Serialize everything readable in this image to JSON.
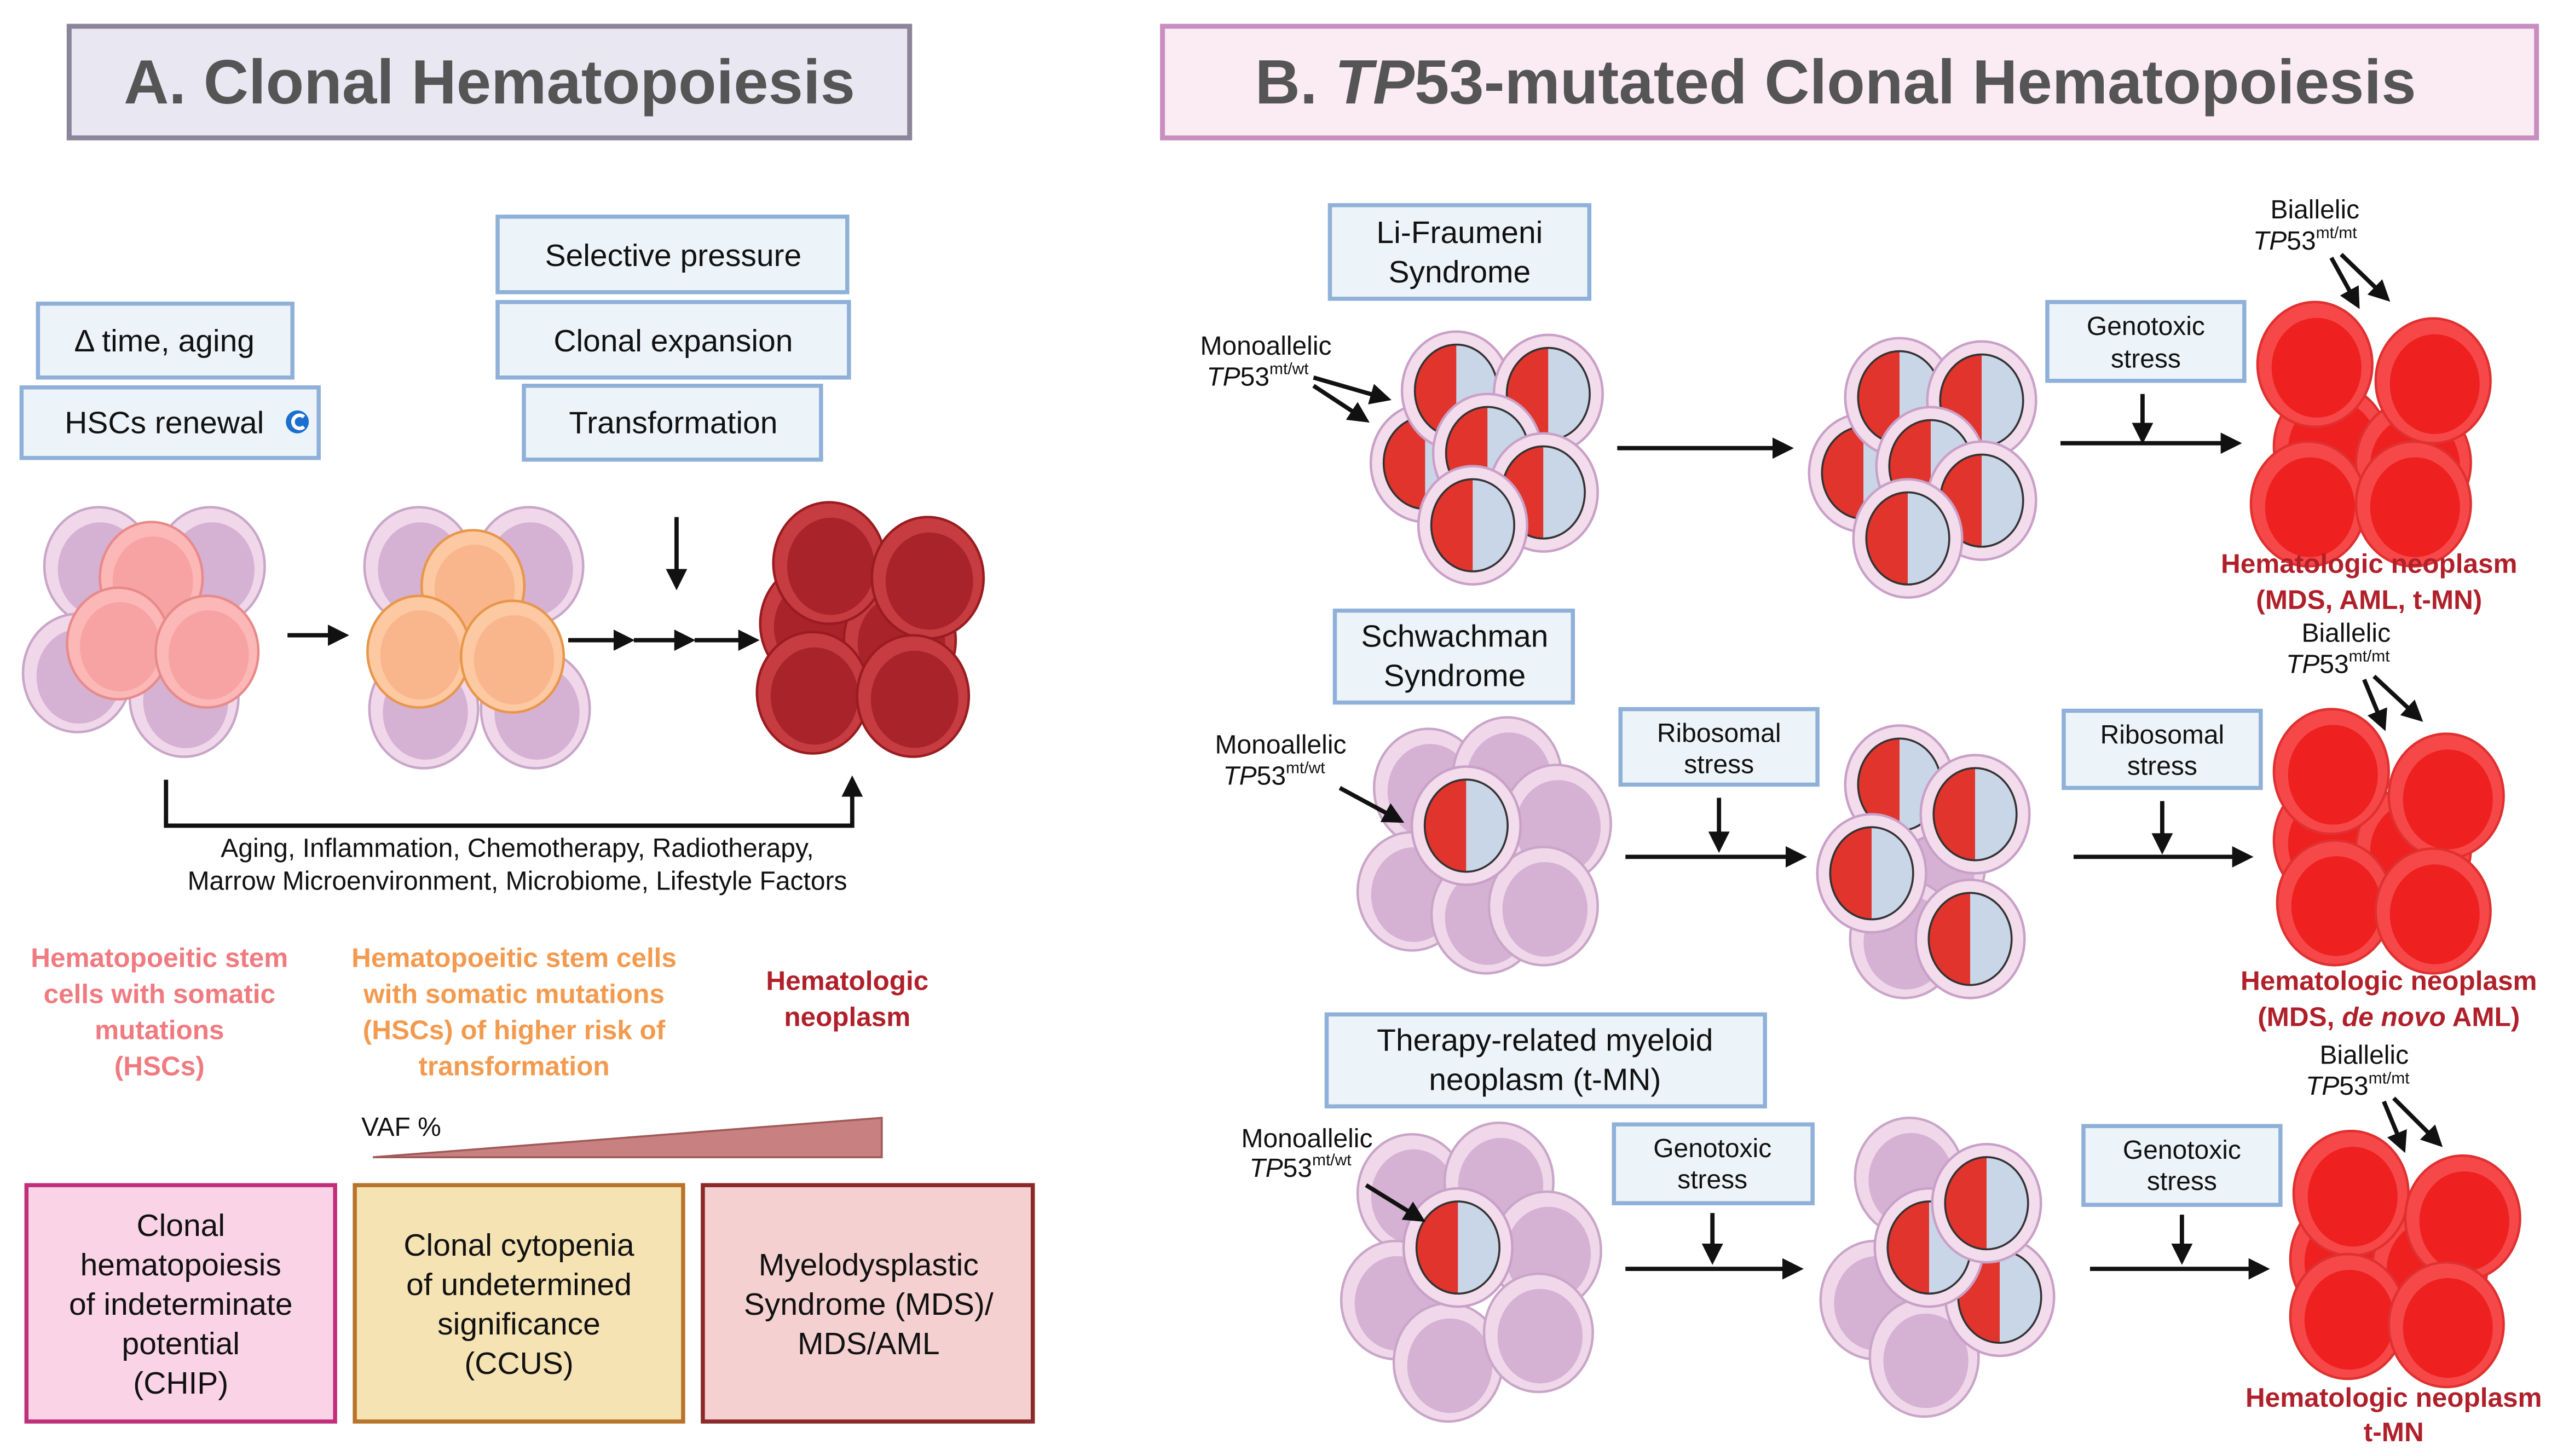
{
  "panel_a": {
    "title": "A. Clonal Hematopoiesis",
    "factors": {
      "time_aging": "Δ time, aging",
      "hsc_renewal": "HSCs renewal",
      "selective_pressure": "Selective pressure",
      "clonal_expansion": "Clonal expansion",
      "transformation": "Transformation"
    },
    "influences": [
      "Aging, Inflammation, Chemotherapy, Radiotherapy,",
      "Marrow Microenvironment, Microbiome, Lifestyle Factors"
    ],
    "stage_labels": {
      "hsc": [
        "Hematopoeitic stem",
        "cells with somatic",
        "mutations",
        "(HSCs)"
      ],
      "high_risk": [
        "Hematopoeitic stem cells",
        "with somatic mutations",
        "(HSCs) of higher risk of",
        "transformation"
      ],
      "neoplasm": [
        "Hematologic",
        "neoplasm"
      ]
    },
    "vaf_label": "VAF %",
    "categories": {
      "chip": [
        "Clonal",
        "hematopoiesis",
        "of indeterminate",
        "potential",
        "(CHIP)"
      ],
      "ccus": [
        "Clonal cytopenia",
        "of undetermined",
        "significance",
        "(CCUS)"
      ],
      "mds": [
        "Myelodysplastic",
        "Syndrome (MDS)/",
        "MDS/AML"
      ]
    },
    "colors": {
      "hsc": "#f07a80",
      "high_risk": "#f39a4e",
      "neoplasm": "#b0202a"
    }
  },
  "panel_b": {
    "title_prefix": "B. ",
    "title_gene": "TP",
    "title_rest": "53-mutated Clonal Hematopoiesis",
    "gene_italic": "TP",
    "gene_num": "53",
    "mono_label": "Monoallelic",
    "mono_sup": "mt/wt",
    "bi_label": "Biallelic",
    "bi_sup": "mt/mt",
    "rows": [
      {
        "syndrome": [
          "Li-Fraumeni",
          "Syndrome"
        ],
        "stress2": [
          "Genotoxic",
          "stress"
        ],
        "outcome": "Hematologic neoplasm",
        "outcome_detail": "(MDS, AML, t-MN)"
      },
      {
        "syndrome": [
          "Schwachman",
          "Syndrome"
        ],
        "stress1": [
          "Ribosomal",
          "stress"
        ],
        "stress2": [
          "Ribosomal",
          "stress"
        ],
        "outcome": "Hematologic neoplasm",
        "outcome_detail_pre": "(MDS, ",
        "outcome_detail_it": "de novo",
        "outcome_detail_post": " AML)"
      },
      {
        "syndrome": [
          "Therapy-related myeloid",
          "neoplasm (t-MN)"
        ],
        "stress1": [
          "Genotoxic",
          "stress"
        ],
        "stress2": [
          "Genotoxic",
          "stress"
        ],
        "outcome": "Hematologic neoplasm",
        "outcome_detail": "t-MN"
      }
    ]
  }
}
